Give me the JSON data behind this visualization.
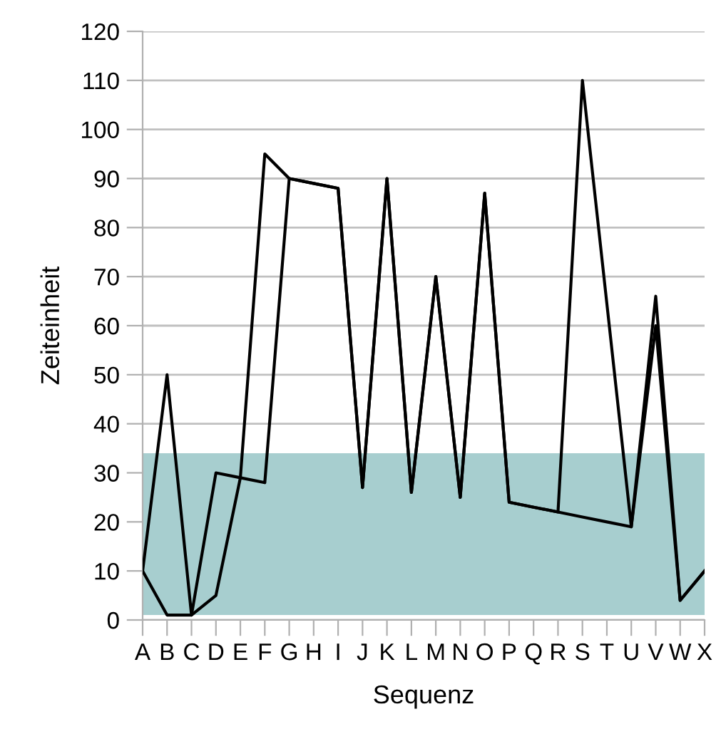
{
  "chart_data": {
    "type": "line",
    "xlabel": "Sequenz",
    "ylabel": "Zeiteinheit",
    "categories": [
      "A",
      "B",
      "C",
      "D",
      "E",
      "F",
      "G",
      "H",
      "I",
      "J",
      "K",
      "L",
      "M",
      "N",
      "O",
      "P",
      "Q",
      "R",
      "S",
      "T",
      "U",
      "V",
      "W",
      "X"
    ],
    "series": [
      {
        "color": "#000000",
        "values": [
          10,
          50,
          1,
          30,
          29,
          28,
          90,
          89,
          88,
          27,
          90,
          26,
          70,
          25,
          87,
          24,
          23,
          22,
          110,
          64.5,
          19,
          66,
          4,
          10
        ]
      },
      {
        "color": "#000000",
        "values": [
          10,
          1,
          1,
          5,
          29,
          95,
          90,
          89,
          88,
          27,
          90,
          26,
          70,
          25,
          87,
          24,
          23,
          22,
          21,
          20,
          19,
          60,
          4,
          10
        ]
      }
    ],
    "ylim": [
      0,
      120
    ],
    "yticks": [
      0,
      10,
      20,
      30,
      40,
      50,
      60,
      70,
      80,
      90,
      100,
      110,
      120
    ],
    "grid": "y",
    "marker": "none",
    "line_style": "solid",
    "bands": [
      {
        "axis": "y",
        "from": 1,
        "to": 34,
        "color": "#a7cecf"
      }
    ]
  }
}
